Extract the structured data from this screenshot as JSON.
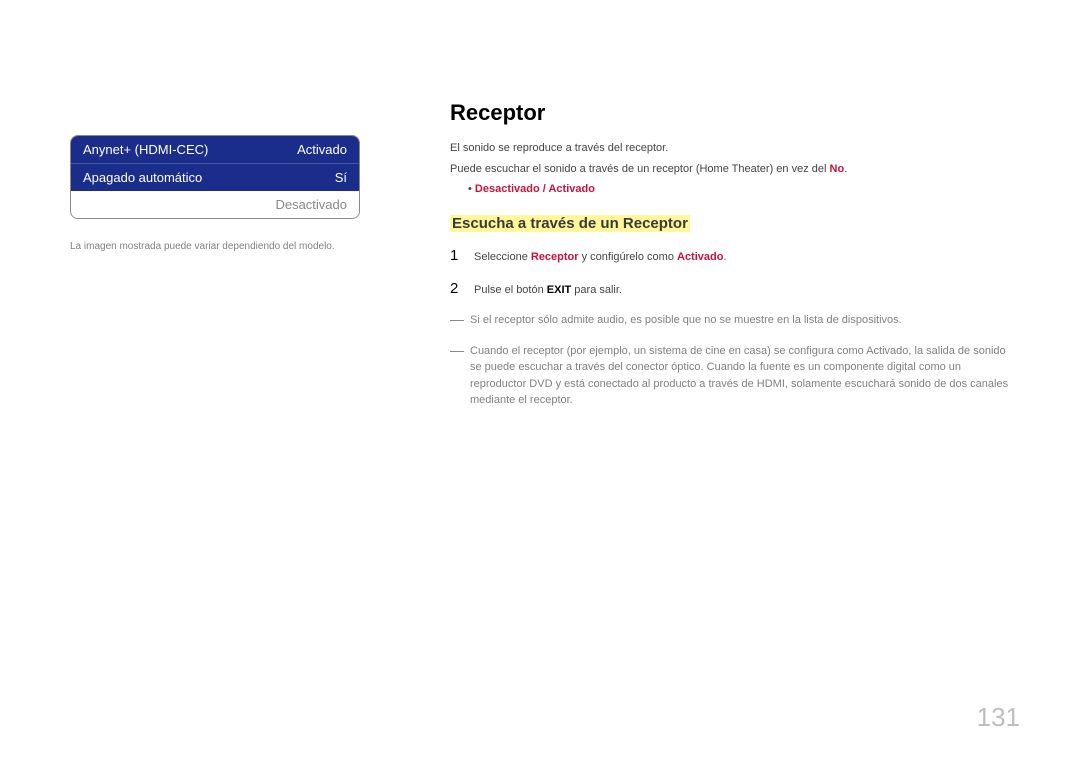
{
  "page_number": "131",
  "left": {
    "menu": {
      "rows": [
        {
          "label": "Anynet+ (HDMI-CEC)",
          "value": "Activado",
          "active": true
        },
        {
          "label": "Apagado automático",
          "value": "Sí",
          "active": true
        },
        {
          "label": "",
          "value": "Desactivado",
          "active": false
        }
      ]
    },
    "note": "La imagen mostrada puede variar dependiendo del modelo."
  },
  "right": {
    "title": "Receptor",
    "intro_line1": "El sonido se reproduce a través del receptor.",
    "intro_line2_pre": "Puede escuchar el sonido a través de un receptor (Home Theater) en vez del ",
    "intro_line2_red": "No",
    "intro_line2_post": ".",
    "bullet_dot": "•  ",
    "options": "Desactivado / Activado",
    "subheading": "Escucha a través de un Receptor",
    "steps": [
      {
        "num": "1",
        "parts": {
          "pre": "Seleccione ",
          "red1": "Receptor",
          "mid": " y configúrelo como ",
          "red2": "Activado",
          "post": "."
        }
      },
      {
        "num": "2",
        "parts": {
          "pre": "Pulse el botón ",
          "bold": "EXIT",
          "post": " para salir."
        }
      }
    ],
    "notes": [
      "Si el receptor sólo admite audio, es posible que no se muestre en la lista de dispositivos.",
      "Cuando el receptor (por ejemplo, un sistema de cine en casa) se configura como Activado, la salida de sonido se puede escuchar a través del conector óptico. Cuando la fuente es un componente digital como un reproductor DVD y está conectado al producto a través de HDMI, solamente escuchará sonido de dos canales mediante el receptor."
    ]
  },
  "colors": {
    "menu_active_bg": "#1a2d8a",
    "highlight_bg": "#fff79a",
    "accent_red": "#c8143c",
    "page_num": "#bfbfbf"
  }
}
